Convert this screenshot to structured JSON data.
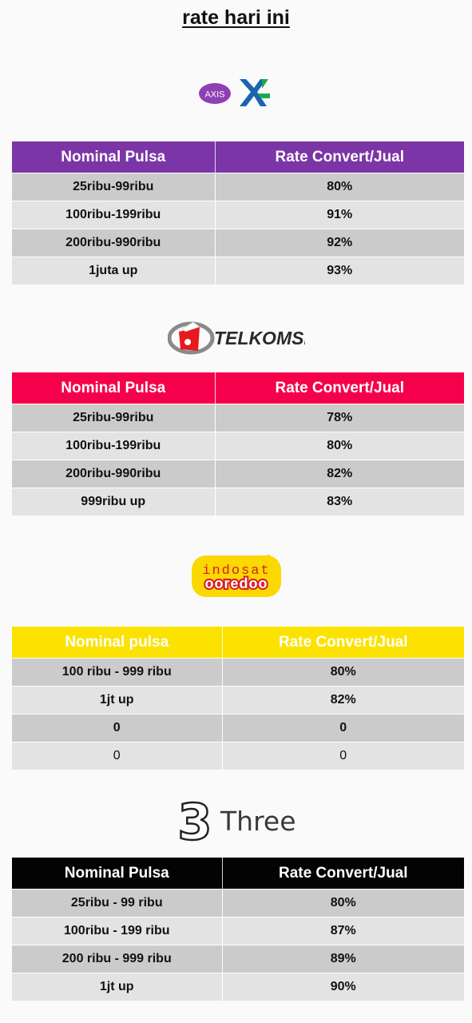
{
  "page_title": "rate hari ini ",
  "operators": [
    {
      "key": "xl",
      "logo_text": [
        "AXIS",
        "XL"
      ],
      "header_color": "#7b35a6",
      "headers": [
        "Nominal Pulsa",
        "Rate Convert/Jual"
      ],
      "rows": [
        [
          "25ribu-99ribu",
          "80%"
        ],
        [
          "100ribu-199ribu",
          "91%"
        ],
        [
          "200ribu-990ribu",
          "92%"
        ],
        [
          "1juta up",
          "93%"
        ]
      ]
    },
    {
      "key": "telkomsel",
      "logo_text": [
        "TELKOMSEL"
      ],
      "header_color": "#f5004a",
      "headers": [
        "Nominal Pulsa",
        "Rate Convert/Jual"
      ],
      "rows": [
        [
          "25ribu-99ribu",
          "78%"
        ],
        [
          "100ribu-199ribu",
          "80%"
        ],
        [
          "200ribu-990ribu",
          "82%"
        ],
        [
          "999ribu up",
          "83%"
        ]
      ]
    },
    {
      "key": "indosat",
      "logo_text": [
        "indosat",
        "ooredoo"
      ],
      "header_color": "#fbe200",
      "headers": [
        "Nominal pulsa",
        "Rate Convert/Jual"
      ],
      "rows": [
        [
          "100 ribu - 999 ribu",
          "80%"
        ],
        [
          "1jt up",
          "82%"
        ],
        [
          "0",
          "0"
        ],
        [
          "0",
          "0"
        ]
      ]
    },
    {
      "key": "three",
      "logo_text": [
        "3",
        "Three"
      ],
      "header_color": "#030303",
      "headers": [
        "Nominal Pulsa",
        "Rate Convert/Jual"
      ],
      "rows": [
        [
          "25ribu - 99 ribu",
          "80%"
        ],
        [
          "100ribu - 199 ribu",
          "87%"
        ],
        [
          "200 ribu - 999 ribu",
          "89%"
        ],
        [
          "1jt up",
          "90%"
        ]
      ]
    }
  ]
}
